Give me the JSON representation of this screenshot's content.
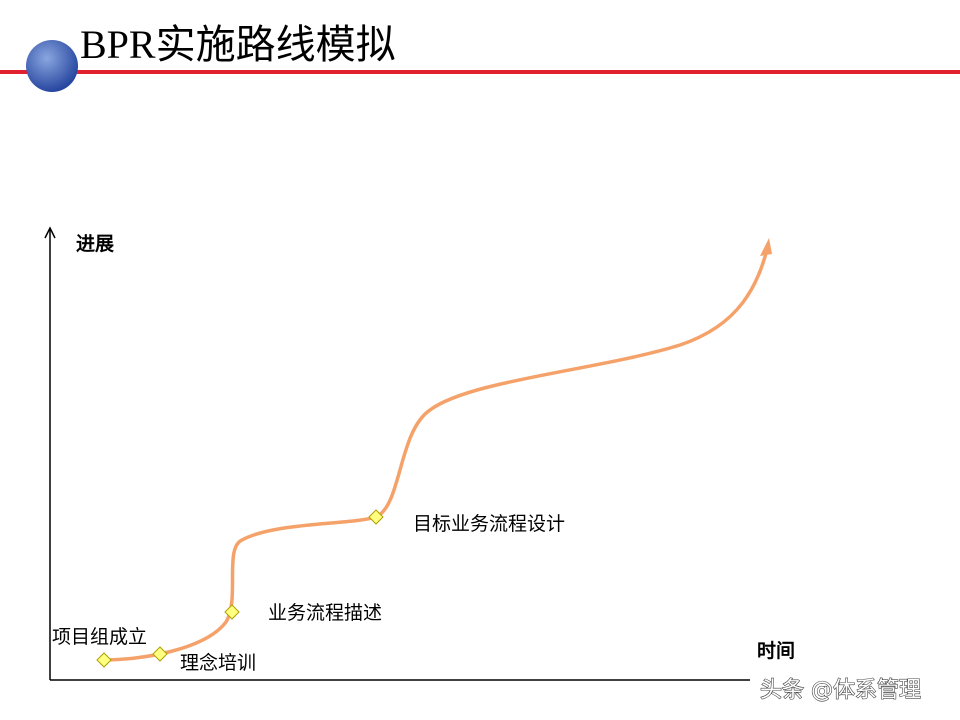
{
  "header": {
    "title": "BPR实施路线模拟"
  },
  "axes": {
    "y_label": "进展",
    "x_label": "时间"
  },
  "milestones": [
    {
      "label": "项目组成立"
    },
    {
      "label": "理念培训"
    },
    {
      "label": "业务流程描述"
    },
    {
      "label": "目标业务流程设计"
    }
  ],
  "watermark": "头条 @体系管理"
}
